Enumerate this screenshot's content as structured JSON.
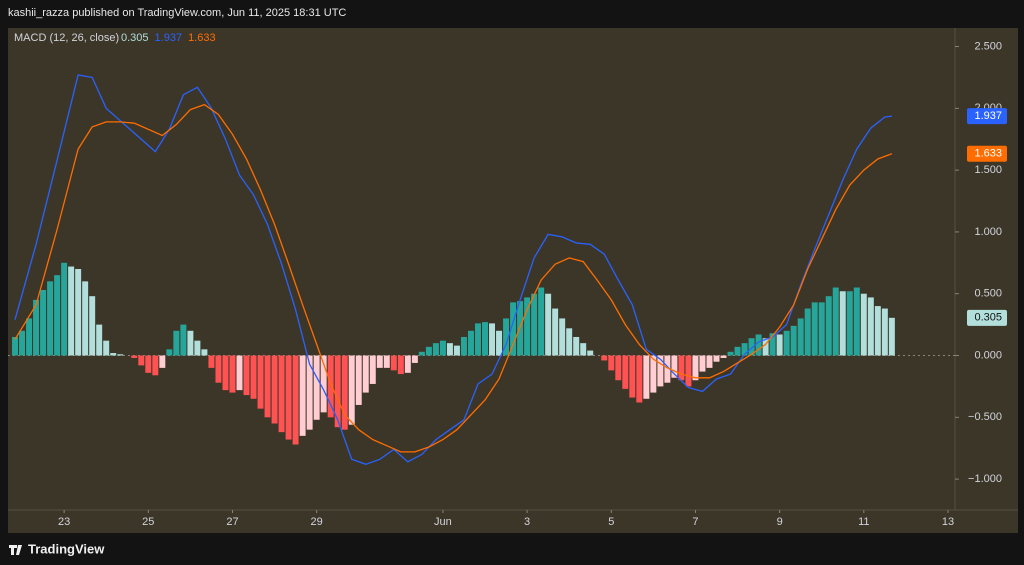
{
  "header": "kashii_razza published on TradingView.com, Jun 11, 2025 18:31 UTC",
  "footer": "TradingView",
  "chart_data": {
    "type": "macd",
    "title": "MACD (12, 26, close)",
    "xlim": [
      -1,
      134
    ],
    "xticks": [
      {
        "value": 7,
        "label": "23"
      },
      {
        "value": 19,
        "label": "25"
      },
      {
        "value": 31,
        "label": "27"
      },
      {
        "value": 43,
        "label": "29"
      },
      {
        "value": 61,
        "label": "Jun"
      },
      {
        "value": 73,
        "label": "3"
      },
      {
        "value": 85,
        "label": "5"
      },
      {
        "value": 97,
        "label": "7"
      },
      {
        "value": 109,
        "label": "9"
      },
      {
        "value": 121,
        "label": "11"
      },
      {
        "value": 133,
        "label": "13"
      }
    ],
    "ylim": [
      -1.25,
      2.65
    ],
    "yticks": [
      {
        "value": 2.5,
        "label": "2.500"
      },
      {
        "value": 2,
        "label": "2.000"
      },
      {
        "value": 1.5,
        "label": "1.500"
      },
      {
        "value": 1,
        "label": "1.000"
      },
      {
        "value": 0.5,
        "label": "0.500"
      },
      {
        "value": 0,
        "label": "0.000"
      },
      {
        "value": -0.5,
        "label": "−0.500"
      },
      {
        "value": -1,
        "label": "−1.000"
      }
    ],
    "histogram": {
      "colors": {
        "up_rising": "#26a69a",
        "up_falling": "#b2dfdb",
        "down_falling": "#ff5252",
        "down_rising": "#ffcdd2"
      },
      "values": [
        0.15,
        0.2,
        0.3,
        0.45,
        0.53,
        0.6,
        0.65,
        0.75,
        0.72,
        0.7,
        0.6,
        0.48,
        0.25,
        0.12,
        0.02,
        0.01,
        0,
        -0.02,
        -0.08,
        -0.14,
        -0.16,
        -0.1,
        0.05,
        0.2,
        0.25,
        0.2,
        0.12,
        0.05,
        -0.1,
        -0.22,
        -0.28,
        -0.3,
        -0.28,
        -0.32,
        -0.35,
        -0.43,
        -0.5,
        -0.55,
        -0.62,
        -0.68,
        -0.72,
        -0.65,
        -0.6,
        -0.52,
        -0.46,
        -0.5,
        -0.58,
        -0.6,
        -0.56,
        -0.4,
        -0.3,
        -0.23,
        -0.1,
        -0.1,
        -0.12,
        -0.15,
        -0.14,
        -0.06,
        0.03,
        0.07,
        0.1,
        0.12,
        0.1,
        0.08,
        0.15,
        0.2,
        0.26,
        0.27,
        0.26,
        0.2,
        0.3,
        0.43,
        0.44,
        0.47,
        0.5,
        0.55,
        0.5,
        0.38,
        0.3,
        0.22,
        0.15,
        0.1,
        0.04,
        0,
        -0.04,
        -0.12,
        -0.2,
        -0.27,
        -0.34,
        -0.38,
        -0.35,
        -0.3,
        -0.25,
        -0.22,
        -0.18,
        -0.2,
        -0.25,
        -0.2,
        -0.13,
        -0.1,
        -0.05,
        -0.02,
        0.03,
        0.07,
        0.1,
        0.14,
        0.17,
        0.14,
        0.18,
        0.17,
        0.2,
        0.24,
        0.3,
        0.38,
        0.43,
        0.43,
        0.48,
        0.55,
        0.52,
        0.52,
        0.55,
        0.5,
        0.47,
        0.4,
        0.38,
        0.305
      ]
    },
    "series": [
      {
        "name": "MACD",
        "color": "#2962ff",
        "x": [
          0,
          3,
          6,
          9,
          11,
          13,
          15,
          18,
          20,
          22,
          24,
          26,
          28,
          30,
          32,
          34,
          36,
          38,
          40,
          42,
          44,
          46,
          48,
          50,
          52,
          54,
          56,
          58,
          60,
          62,
          64,
          66,
          68,
          70,
          72,
          74,
          76,
          78,
          80,
          82,
          84,
          86,
          88,
          90,
          92,
          94,
          96,
          98,
          100,
          102,
          104,
          106,
          108,
          110,
          112,
          114,
          116,
          118,
          120,
          122,
          124,
          125
        ],
        "values": [
          0.29,
          0.9,
          1.58,
          2.27,
          2.25,
          2.0,
          1.9,
          1.75,
          1.65,
          1.83,
          2.11,
          2.17,
          2.0,
          1.75,
          1.46,
          1.3,
          1.06,
          0.74,
          0.37,
          -0.07,
          -0.28,
          -0.52,
          -0.84,
          -0.88,
          -0.84,
          -0.76,
          -0.86,
          -0.8,
          -0.68,
          -0.6,
          -0.52,
          -0.23,
          -0.15,
          0.09,
          0.45,
          0.79,
          0.98,
          0.96,
          0.91,
          0.9,
          0.82,
          0.61,
          0.41,
          0.05,
          -0.03,
          -0.15,
          -0.26,
          -0.29,
          -0.19,
          -0.15,
          0.01,
          0.11,
          0.15,
          0.25,
          0.57,
          0.86,
          1.14,
          1.42,
          1.67,
          1.84,
          1.93,
          1.937
        ]
      },
      {
        "name": "Signal",
        "color": "#ff6d00",
        "x": [
          0,
          3,
          6,
          9,
          11,
          13,
          15,
          17,
          19,
          21,
          23,
          25,
          27,
          29,
          31,
          33,
          35,
          37,
          39,
          41,
          43,
          45,
          47,
          49,
          51,
          53,
          55,
          57,
          59,
          61,
          63,
          65,
          67,
          69,
          71,
          73,
          75,
          77,
          79,
          81,
          83,
          85,
          87,
          89,
          91,
          93,
          95,
          97,
          99,
          101,
          103,
          105,
          107,
          109,
          111,
          113,
          115,
          117,
          119,
          121,
          123,
          125
        ],
        "values": [
          0.13,
          0.41,
          1.02,
          1.67,
          1.85,
          1.89,
          1.89,
          1.88,
          1.83,
          1.78,
          1.87,
          1.99,
          2.03,
          1.95,
          1.79,
          1.59,
          1.34,
          1.06,
          0.74,
          0.41,
          0.09,
          -0.23,
          -0.48,
          -0.6,
          -0.68,
          -0.73,
          -0.78,
          -0.78,
          -0.74,
          -0.68,
          -0.6,
          -0.48,
          -0.36,
          -0.19,
          0.09,
          0.37,
          0.61,
          0.74,
          0.79,
          0.76,
          0.61,
          0.45,
          0.25,
          0.09,
          -0.03,
          -0.1,
          -0.15,
          -0.18,
          -0.18,
          -0.13,
          -0.06,
          0.01,
          0.09,
          0.23,
          0.41,
          0.7,
          0.94,
          1.18,
          1.38,
          1.5,
          1.59,
          1.633
        ]
      }
    ]
  }
}
